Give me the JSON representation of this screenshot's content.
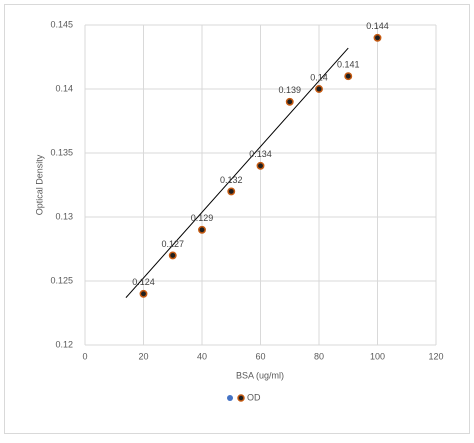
{
  "chart_data": {
    "type": "scatter",
    "x_label": "BSA (ug/ml)",
    "y_label": "Optical Density",
    "series": [
      {
        "name": "OD",
        "color": "#1f1f1f",
        "edgecolor": "#c55a11",
        "x": [
          20,
          30,
          40,
          50,
          60,
          70,
          80,
          90,
          100
        ],
        "values": [
          0.124,
          0.127,
          0.129,
          0.132,
          0.134,
          0.139,
          0.14,
          0.141,
          0.144
        ]
      }
    ],
    "trendline": {
      "color": "#000000",
      "x": [
        14,
        90
      ],
      "y": [
        0.1237,
        0.1432
      ]
    },
    "xlim": [
      0,
      120
    ],
    "xticks": [
      0,
      20,
      40,
      60,
      80,
      100,
      120
    ],
    "ylim": [
      0.12,
      0.145
    ],
    "yticks": [
      0.12,
      0.125,
      0.13,
      0.135,
      0.14,
      0.145
    ],
    "grid": true,
    "legend": "bottom"
  }
}
